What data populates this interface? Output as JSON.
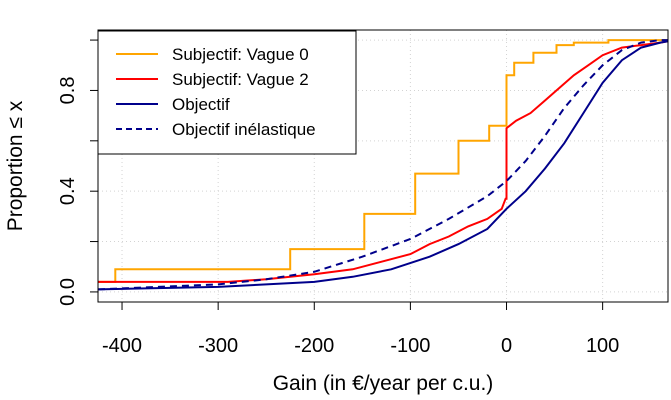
{
  "chart_data": {
    "type": "line",
    "subtype": "empirical-cdf-step",
    "title": "",
    "xlabel": "Gain (in €/year per c.u.)",
    "ylabel": "Proportion  ≤  x",
    "xlim": [
      -425,
      168
    ],
    "ylim": [
      -0.04,
      1.04
    ],
    "x_ticks": [
      -400,
      -300,
      -200,
      -100,
      0,
      100
    ],
    "x_tick_labels": [
      "-400",
      "-300",
      "-200",
      "-100",
      "0",
      "100"
    ],
    "y_ticks": [
      0,
      0.2,
      0.4,
      0.6,
      0.8,
      1.0
    ],
    "y_tick_labels": [
      "0.0",
      "",
      "0.4",
      "",
      "0.8",
      ""
    ],
    "grid": true,
    "legend_position": "top-left",
    "series": [
      {
        "name": "Subjectif: Vague 0",
        "color": "#FFA500",
        "style": "step",
        "points": [
          [
            -425,
            0.04
          ],
          [
            -407,
            0.04
          ],
          [
            -407,
            0.09
          ],
          [
            -225,
            0.09
          ],
          [
            -225,
            0.17
          ],
          [
            -148,
            0.17
          ],
          [
            -148,
            0.31
          ],
          [
            -95,
            0.31
          ],
          [
            -95,
            0.47
          ],
          [
            -50,
            0.47
          ],
          [
            -50,
            0.6
          ],
          [
            -18,
            0.6
          ],
          [
            -18,
            0.66
          ],
          [
            0,
            0.66
          ],
          [
            0,
            0.86
          ],
          [
            8,
            0.86
          ],
          [
            8,
            0.91
          ],
          [
            28,
            0.91
          ],
          [
            28,
            0.95
          ],
          [
            52,
            0.95
          ],
          [
            52,
            0.98
          ],
          [
            70,
            0.98
          ],
          [
            70,
            0.99
          ],
          [
            106,
            0.99
          ],
          [
            106,
            1.0
          ],
          [
            130,
            1.0
          ],
          [
            168,
            1.0
          ]
        ]
      },
      {
        "name": "Subjectif: Vague 2",
        "color": "#FF0000",
        "style": "step",
        "points": [
          [
            -425,
            0.04
          ],
          [
            -290,
            0.04
          ],
          [
            -250,
            0.05
          ],
          [
            -200,
            0.07
          ],
          [
            -160,
            0.09
          ],
          [
            -130,
            0.12
          ],
          [
            -100,
            0.15
          ],
          [
            -80,
            0.19
          ],
          [
            -60,
            0.22
          ],
          [
            -40,
            0.26
          ],
          [
            -20,
            0.29
          ],
          [
            -5,
            0.33
          ],
          [
            -1,
            0.37
          ],
          [
            0,
            0.37
          ],
          [
            0,
            0.65
          ],
          [
            10,
            0.68
          ],
          [
            25,
            0.71
          ],
          [
            40,
            0.76
          ],
          [
            55,
            0.81
          ],
          [
            70,
            0.86
          ],
          [
            85,
            0.9
          ],
          [
            100,
            0.94
          ],
          [
            120,
            0.97
          ],
          [
            140,
            0.98
          ],
          [
            160,
            0.99
          ],
          [
            168,
            0.995
          ]
        ]
      },
      {
        "name": "Objectif",
        "color": "#00008B",
        "style": "solid",
        "points": [
          [
            -425,
            0.01
          ],
          [
            -300,
            0.02
          ],
          [
            -250,
            0.03
          ],
          [
            -200,
            0.04
          ],
          [
            -160,
            0.06
          ],
          [
            -120,
            0.09
          ],
          [
            -80,
            0.14
          ],
          [
            -50,
            0.19
          ],
          [
            -20,
            0.25
          ],
          [
            0,
            0.33
          ],
          [
            20,
            0.4
          ],
          [
            40,
            0.49
          ],
          [
            60,
            0.59
          ],
          [
            80,
            0.71
          ],
          [
            100,
            0.83
          ],
          [
            120,
            0.92
          ],
          [
            140,
            0.97
          ],
          [
            160,
            0.99
          ],
          [
            168,
            0.995
          ]
        ]
      },
      {
        "name": "Objectif inélastique",
        "color": "#00008B",
        "style": "dashed",
        "points": [
          [
            -425,
            0.01
          ],
          [
            -300,
            0.03
          ],
          [
            -250,
            0.05
          ],
          [
            -200,
            0.08
          ],
          [
            -150,
            0.14
          ],
          [
            -100,
            0.21
          ],
          [
            -60,
            0.29
          ],
          [
            -20,
            0.38
          ],
          [
            0,
            0.44
          ],
          [
            20,
            0.52
          ],
          [
            40,
            0.62
          ],
          [
            60,
            0.73
          ],
          [
            80,
            0.82
          ],
          [
            100,
            0.9
          ],
          [
            120,
            0.96
          ],
          [
            140,
            0.99
          ],
          [
            160,
            1.0
          ],
          [
            168,
            1.0
          ]
        ]
      }
    ]
  }
}
